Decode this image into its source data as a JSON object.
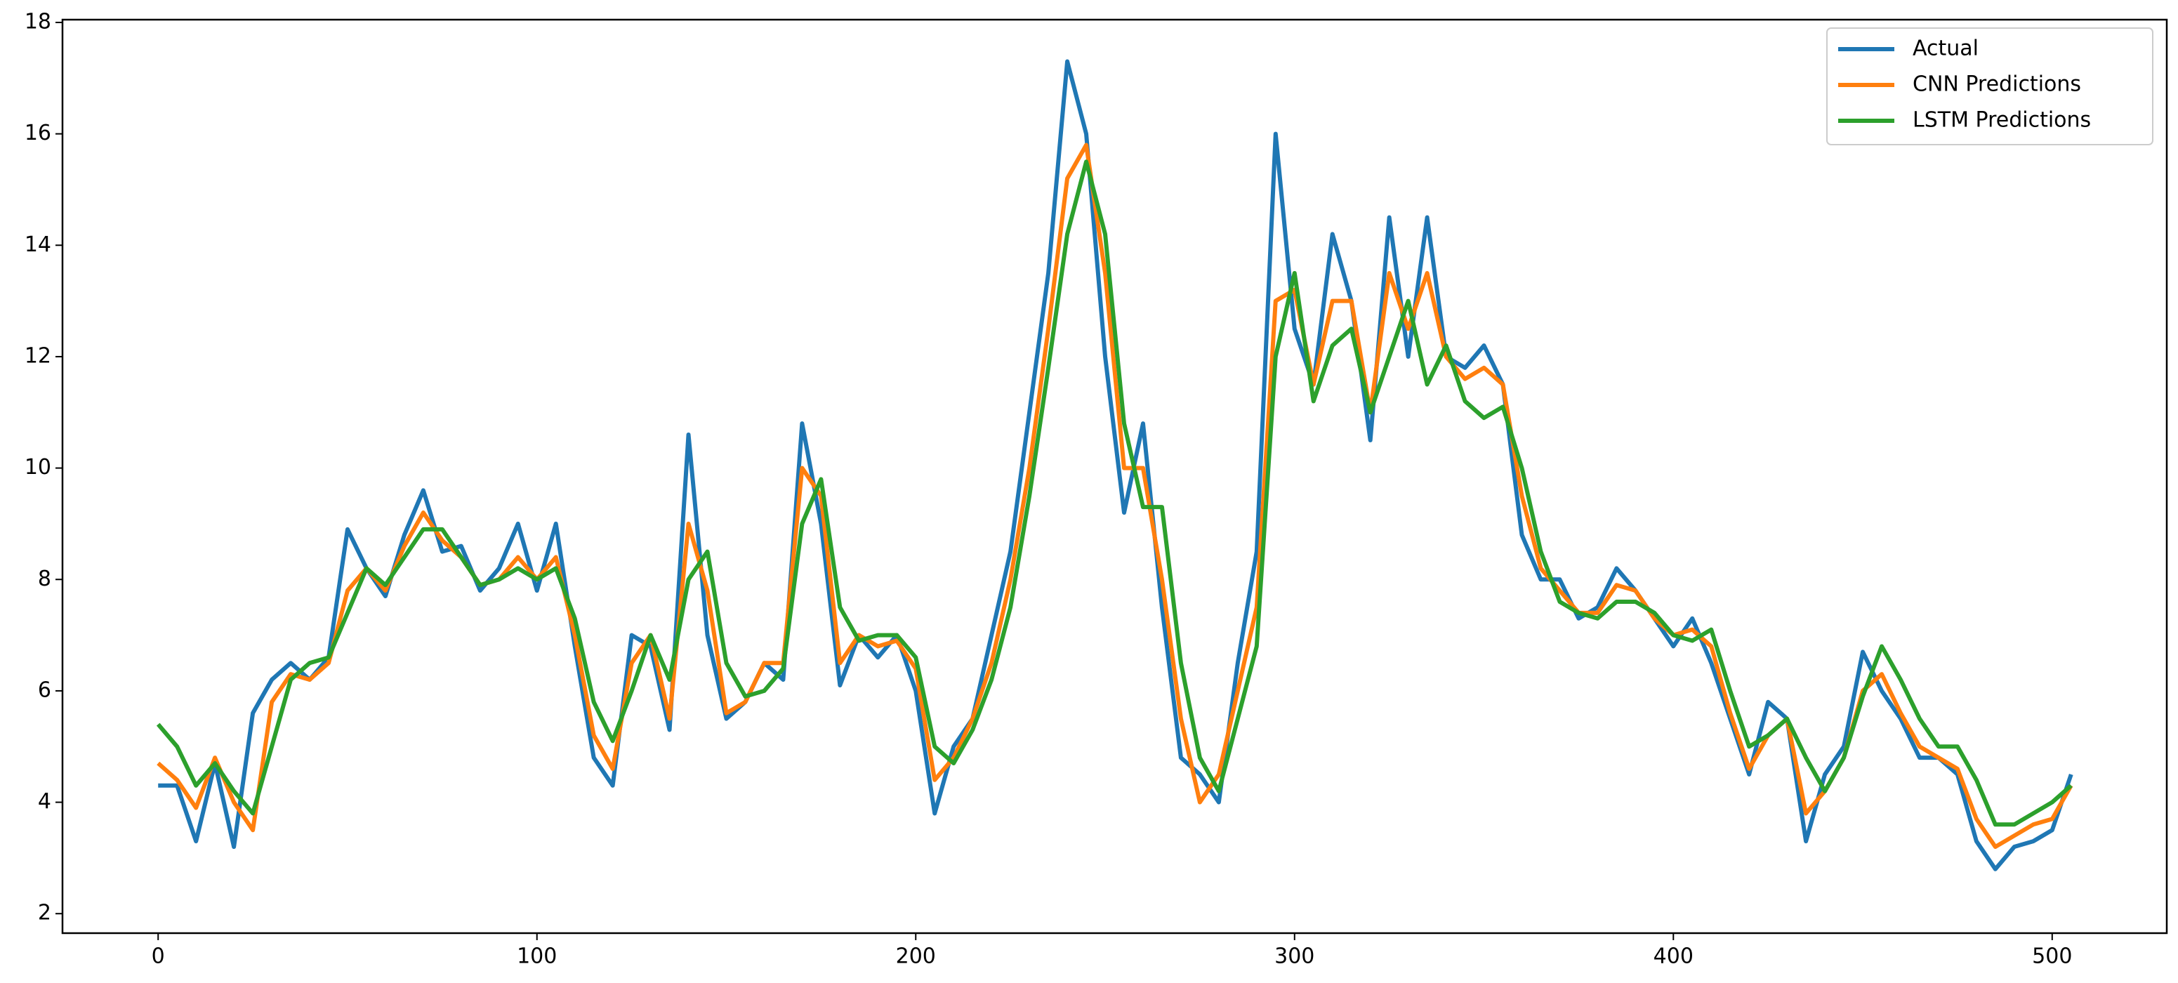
{
  "chart_data": {
    "type": "line",
    "legend": "upper right",
    "x": [
      0,
      5,
      10,
      15,
      20,
      25,
      30,
      35,
      40,
      45,
      50,
      55,
      60,
      65,
      70,
      75,
      80,
      85,
      90,
      95,
      100,
      105,
      110,
      115,
      120,
      125,
      130,
      135,
      140,
      145,
      150,
      155,
      160,
      165,
      170,
      175,
      180,
      185,
      190,
      195,
      200,
      205,
      210,
      215,
      220,
      225,
      230,
      235,
      240,
      245,
      250,
      255,
      260,
      265,
      270,
      275,
      280,
      285,
      290,
      295,
      300,
      305,
      310,
      315,
      320,
      325,
      330,
      335,
      340,
      345,
      350,
      355,
      360,
      365,
      370,
      375,
      380,
      385,
      390,
      395,
      400,
      405,
      410,
      415,
      420,
      425,
      430,
      435,
      440,
      445,
      450,
      455,
      460,
      465,
      470,
      475,
      480,
      485,
      490,
      495,
      500,
      505
    ],
    "series": [
      {
        "name": "Actual",
        "color": "#1f77b4",
        "values": [
          4.3,
          4.3,
          3.3,
          4.7,
          3.2,
          5.6,
          6.2,
          6.5,
          6.2,
          6.6,
          8.9,
          8.2,
          7.7,
          8.8,
          9.6,
          8.5,
          8.6,
          7.8,
          8.2,
          9.0,
          7.8,
          9.0,
          6.8,
          4.8,
          4.3,
          7.0,
          6.8,
          5.3,
          10.6,
          7.0,
          5.5,
          5.8,
          6.5,
          6.2,
          10.8,
          9.0,
          6.1,
          7.0,
          6.6,
          7.0,
          6.0,
          3.8,
          5.0,
          5.5,
          7.0,
          8.5,
          11.0,
          13.5,
          17.3,
          16.0,
          12.0,
          9.2,
          10.8,
          7.5,
          4.8,
          4.5,
          4.0,
          6.5,
          8.5,
          16.0,
          12.5,
          11.5,
          14.2,
          13.0,
          10.5,
          14.5,
          12.0,
          14.5,
          12.0,
          11.8,
          12.2,
          11.5,
          8.8,
          8.0,
          8.0,
          7.3,
          7.5,
          8.2,
          7.8,
          7.3,
          6.8,
          7.3,
          6.5,
          5.5,
          4.5,
          5.8,
          5.5,
          3.3,
          4.5,
          5.0,
          6.7,
          6.0,
          5.5,
          4.8,
          4.8,
          4.5,
          3.3,
          2.8,
          3.2,
          3.3,
          3.5,
          4.5
        ]
      },
      {
        "name": "CNN Predictions",
        "color": "#ff7f0e",
        "values": [
          4.7,
          4.4,
          3.9,
          4.8,
          4.0,
          3.5,
          5.8,
          6.3,
          6.2,
          6.5,
          7.8,
          8.2,
          7.8,
          8.6,
          9.2,
          8.7,
          8.4,
          7.9,
          8.0,
          8.4,
          8.0,
          8.4,
          7.0,
          5.2,
          4.6,
          6.5,
          7.0,
          5.5,
          9.0,
          7.8,
          5.6,
          5.8,
          6.5,
          6.5,
          10.0,
          9.5,
          6.5,
          7.0,
          6.8,
          6.9,
          6.4,
          4.4,
          4.8,
          5.5,
          6.5,
          8.0,
          10.0,
          12.5,
          15.2,
          15.8,
          13.5,
          10.0,
          10.0,
          8.0,
          5.5,
          4.0,
          4.5,
          6.0,
          7.5,
          13.0,
          13.2,
          11.5,
          13.0,
          13.0,
          11.0,
          13.5,
          12.5,
          13.5,
          12.0,
          11.6,
          11.8,
          11.5,
          9.5,
          8.2,
          7.8,
          7.4,
          7.4,
          7.9,
          7.8,
          7.3,
          7.0,
          7.1,
          6.8,
          5.6,
          4.6,
          5.2,
          5.5,
          3.8,
          4.2,
          4.8,
          6.0,
          6.3,
          5.6,
          5.0,
          4.8,
          4.6,
          3.7,
          3.2,
          3.4,
          3.6,
          3.7,
          4.3
        ]
      },
      {
        "name": "LSTM Predictions",
        "color": "#2ca02c",
        "values": [
          5.4,
          5.0,
          4.3,
          4.7,
          4.2,
          3.8,
          5.0,
          6.2,
          6.5,
          6.6,
          7.4,
          8.2,
          7.9,
          8.4,
          8.9,
          8.9,
          8.4,
          7.9,
          8.0,
          8.2,
          8.0,
          8.2,
          7.3,
          5.8,
          5.1,
          6.0,
          7.0,
          6.2,
          8.0,
          8.5,
          6.5,
          5.9,
          6.0,
          6.4,
          9.0,
          9.8,
          7.5,
          6.9,
          7.0,
          7.0,
          6.6,
          5.0,
          4.7,
          5.3,
          6.2,
          7.5,
          9.5,
          11.8,
          14.2,
          15.5,
          14.2,
          10.8,
          9.3,
          9.3,
          6.5,
          4.8,
          4.2,
          5.5,
          6.8,
          12.0,
          13.5,
          11.2,
          12.2,
          12.5,
          11.0,
          12.0,
          13.0,
          11.5,
          12.2,
          11.2,
          10.9,
          11.1,
          10.0,
          8.5,
          7.6,
          7.4,
          7.3,
          7.6,
          7.6,
          7.4,
          7.0,
          6.9,
          7.1,
          6.0,
          5.0,
          5.2,
          5.5,
          4.8,
          4.2,
          4.8,
          5.9,
          6.8,
          6.2,
          5.5,
          5.0,
          5.0,
          4.4,
          3.6,
          3.6,
          3.8,
          4.0,
          4.3
        ]
      }
    ],
    "xlim": [
      -25.25,
      530.25
    ],
    "xticks": [
      0,
      100,
      200,
      300,
      400,
      500
    ],
    "ylim": [
      1.65,
      18.05
    ],
    "yticks": [
      2,
      4,
      6,
      8,
      10,
      12,
      14,
      16,
      18
    ]
  }
}
